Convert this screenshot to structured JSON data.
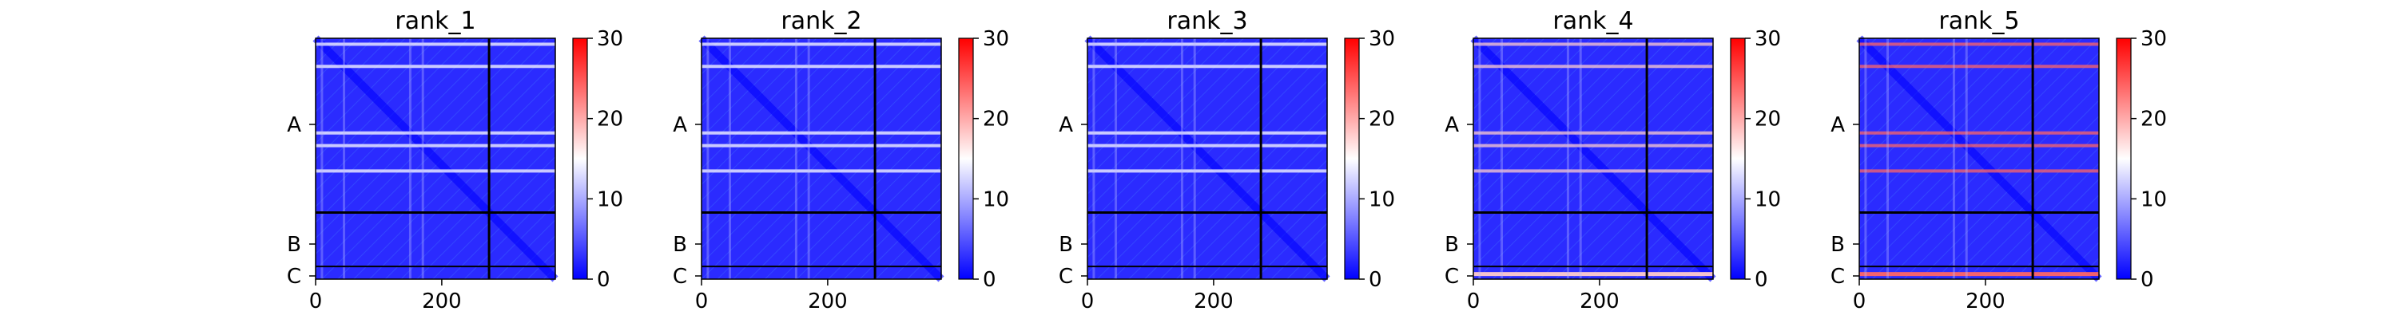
{
  "chart_data": [
    {
      "type": "heatmap",
      "title": "rank_1",
      "x_ticks": [
        "0",
        "200"
      ],
      "y_ticks": [
        "A",
        "B",
        "C"
      ],
      "chain_boundaries": [
        275
      ],
      "matrix_size": 380,
      "colorbar": {
        "ticks": [
          "0",
          "10",
          "20",
          "30"
        ],
        "range": [
          0,
          30
        ],
        "colormap": "bwr"
      },
      "bright_rows": [
        10,
        45,
        150,
        170,
        210
      ],
      "bright_level": 15
    },
    {
      "type": "heatmap",
      "title": "rank_2",
      "x_ticks": [
        "0",
        "200"
      ],
      "y_ticks": [
        "A",
        "B",
        "C"
      ],
      "chain_boundaries": [
        275
      ],
      "matrix_size": 380,
      "colorbar": {
        "ticks": [
          "0",
          "10",
          "20",
          "30"
        ],
        "range": [
          0,
          30
        ],
        "colormap": "bwr"
      },
      "bright_rows": [
        10,
        45,
        150,
        170,
        210
      ],
      "bright_level": 15
    },
    {
      "type": "heatmap",
      "title": "rank_3",
      "x_ticks": [
        "0",
        "200"
      ],
      "y_ticks": [
        "A",
        "B",
        "C"
      ],
      "chain_boundaries": [
        275
      ],
      "matrix_size": 380,
      "colorbar": {
        "ticks": [
          "0",
          "10",
          "20",
          "30"
        ],
        "range": [
          0,
          30
        ],
        "colormap": "bwr"
      },
      "bright_rows": [
        10,
        45,
        150,
        170,
        210
      ],
      "bright_level": 15
    },
    {
      "type": "heatmap",
      "title": "rank_4",
      "x_ticks": [
        "0",
        "200"
      ],
      "y_ticks": [
        "A",
        "B",
        "C"
      ],
      "chain_boundaries": [
        275
      ],
      "matrix_size": 380,
      "colorbar": {
        "ticks": [
          "0",
          "10",
          "20",
          "30"
        ],
        "range": [
          0,
          30
        ],
        "colormap": "bwr"
      },
      "bright_rows": [
        10,
        45,
        150,
        170,
        210,
        372
      ],
      "bright_level": 18
    },
    {
      "type": "heatmap",
      "title": "rank_5",
      "x_ticks": [
        "0",
        "200"
      ],
      "y_ticks": [
        "A",
        "B",
        "C"
      ],
      "chain_boundaries": [
        275
      ],
      "matrix_size": 380,
      "colorbar": {
        "ticks": [
          "0",
          "10",
          "20",
          "30"
        ],
        "range": [
          0,
          30
        ],
        "colormap": "bwr"
      },
      "bright_rows": [
        10,
        45,
        150,
        170,
        210,
        372
      ],
      "bright_level": 24
    }
  ]
}
